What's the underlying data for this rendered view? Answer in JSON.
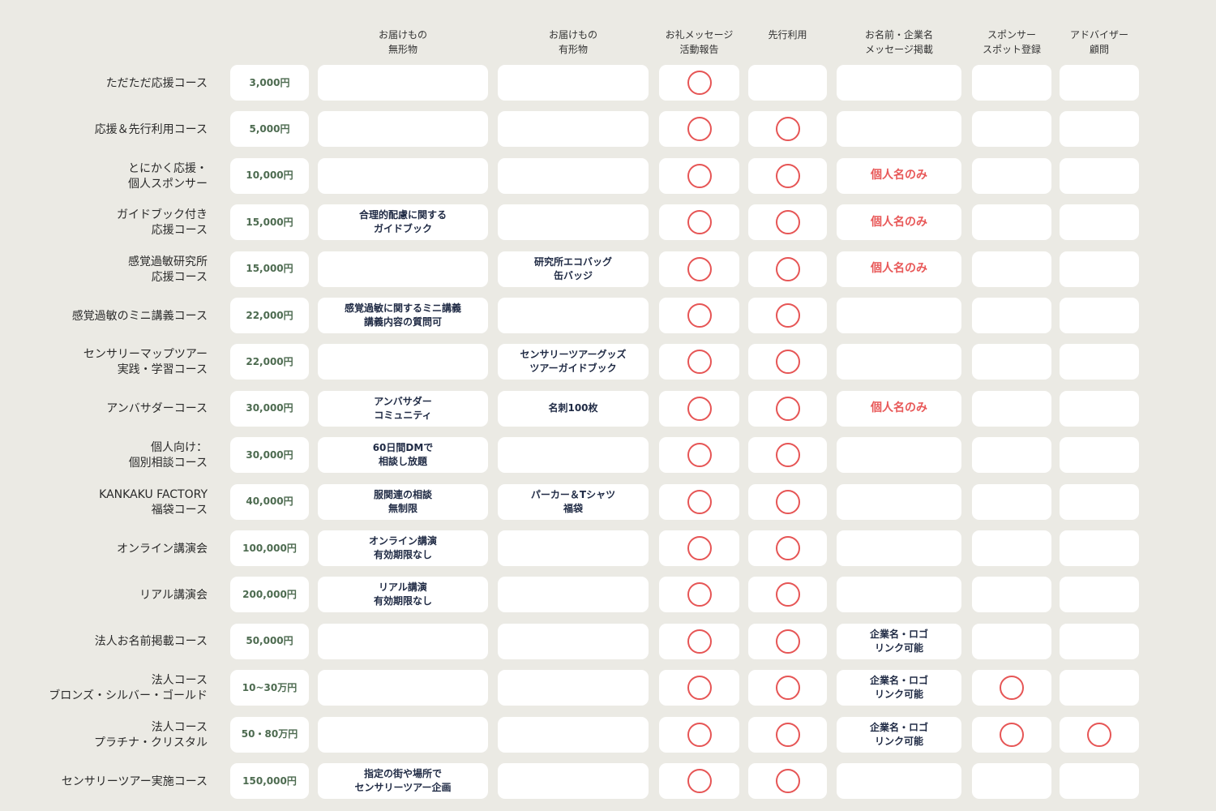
{
  "headers": [
    "お届けもの\n無形物",
    "お届けもの\n有形物",
    "お礼メッセージ\n活動報告",
    "先行利用",
    "お名前・企業名\nメッセージ掲載",
    "スポンサー\nスポット登録",
    "アドバイザー\n顧問"
  ],
  "colors": {
    "background": "#ebeae4",
    "cell": "#ffffff",
    "circle": "#e65555",
    "price": "#4d6b50",
    "text": "#1f2a44",
    "highlight": "#e85858"
  },
  "mark_icon": "red-circle-icon",
  "rows": [
    {
      "name": "ただただ応援コース",
      "price": "3,000円",
      "intangible": "",
      "tangible": "",
      "thanks": true,
      "early": false,
      "listing": "",
      "listing_highlight": false,
      "sponsor": false,
      "advisor": false
    },
    {
      "name": "応援＆先行利用コース",
      "price": "5,000円",
      "intangible": "",
      "tangible": "",
      "thanks": true,
      "early": true,
      "listing": "",
      "listing_highlight": false,
      "sponsor": false,
      "advisor": false
    },
    {
      "name": "とにかく応援・\n個人スポンサー",
      "price": "10,000円",
      "intangible": "",
      "tangible": "",
      "thanks": true,
      "early": true,
      "listing": "個人名のみ",
      "listing_highlight": true,
      "sponsor": false,
      "advisor": false
    },
    {
      "name": "ガイドブック付き\n応援コース",
      "price": "15,000円",
      "intangible": "合理的配慮に関する\nガイドブック",
      "tangible": "",
      "thanks": true,
      "early": true,
      "listing": "個人名のみ",
      "listing_highlight": true,
      "sponsor": false,
      "advisor": false
    },
    {
      "name": "感覚過敏研究所\n応援コース",
      "price": "15,000円",
      "intangible": "",
      "tangible": "研究所エコバッグ\n缶バッジ",
      "thanks": true,
      "early": true,
      "listing": "個人名のみ",
      "listing_highlight": true,
      "sponsor": false,
      "advisor": false
    },
    {
      "name": "感覚過敏のミニ講義コース",
      "price": "22,000円",
      "intangible": "感覚過敏に関するミニ講義\n講義内容の質問可",
      "tangible": "",
      "thanks": true,
      "early": true,
      "listing": "",
      "listing_highlight": false,
      "sponsor": false,
      "advisor": false
    },
    {
      "name": "センサリーマップツアー\n実践・学習コース",
      "price": "22,000円",
      "intangible": "",
      "tangible": "センサリーツアーグッズ\nツアーガイドブック",
      "thanks": true,
      "early": true,
      "listing": "",
      "listing_highlight": false,
      "sponsor": false,
      "advisor": false
    },
    {
      "name": "アンバサダーコース",
      "price": "30,000円",
      "intangible": "アンバサダー\nコミュニティ",
      "tangible": "名刺100枚",
      "thanks": true,
      "early": true,
      "listing": "個人名のみ",
      "listing_highlight": true,
      "sponsor": false,
      "advisor": false
    },
    {
      "name": "個人向け：\n個別相談コース",
      "price": "30,000円",
      "intangible": "60日間DMで\n相談し放題",
      "tangible": "",
      "thanks": true,
      "early": true,
      "listing": "",
      "listing_highlight": false,
      "sponsor": false,
      "advisor": false
    },
    {
      "name": "KANKAKU FACTORY\n福袋コース",
      "price": "40,000円",
      "intangible": "服関連の相談\n無制限",
      "tangible": "パーカー＆Tシャツ\n福袋",
      "thanks": true,
      "early": true,
      "listing": "",
      "listing_highlight": false,
      "sponsor": false,
      "advisor": false
    },
    {
      "name": "オンライン講演会",
      "price": "100,000円",
      "intangible": "オンライン講演\n有効期限なし",
      "tangible": "",
      "thanks": true,
      "early": true,
      "listing": "",
      "listing_highlight": false,
      "sponsor": false,
      "advisor": false
    },
    {
      "name": "リアル講演会",
      "price": "200,000円",
      "intangible": "リアル講演\n有効期限なし",
      "tangible": "",
      "thanks": true,
      "early": true,
      "listing": "",
      "listing_highlight": false,
      "sponsor": false,
      "advisor": false
    },
    {
      "name": "法人お名前掲載コース",
      "price": "50,000円",
      "intangible": "",
      "tangible": "",
      "thanks": true,
      "early": true,
      "listing": "企業名・ロゴ\nリンク可能",
      "listing_highlight": false,
      "sponsor": false,
      "advisor": false
    },
    {
      "name": "法人コース\nブロンズ・シルバー・ゴールド",
      "price": "10~30万円",
      "intangible": "",
      "tangible": "",
      "thanks": true,
      "early": true,
      "listing": "企業名・ロゴ\nリンク可能",
      "listing_highlight": false,
      "sponsor": true,
      "advisor": false
    },
    {
      "name": "法人コース\nプラチナ・クリスタル",
      "price": "50・80万円",
      "intangible": "",
      "tangible": "",
      "thanks": true,
      "early": true,
      "listing": "企業名・ロゴ\nリンク可能",
      "listing_highlight": false,
      "sponsor": true,
      "advisor": true
    },
    {
      "name": "センサリーツアー実施コース",
      "price": "150,000円",
      "intangible": "指定の街や場所で\nセンサリーツアー企画",
      "tangible": "",
      "thanks": true,
      "early": true,
      "listing": "",
      "listing_highlight": false,
      "sponsor": false,
      "advisor": false
    }
  ]
}
